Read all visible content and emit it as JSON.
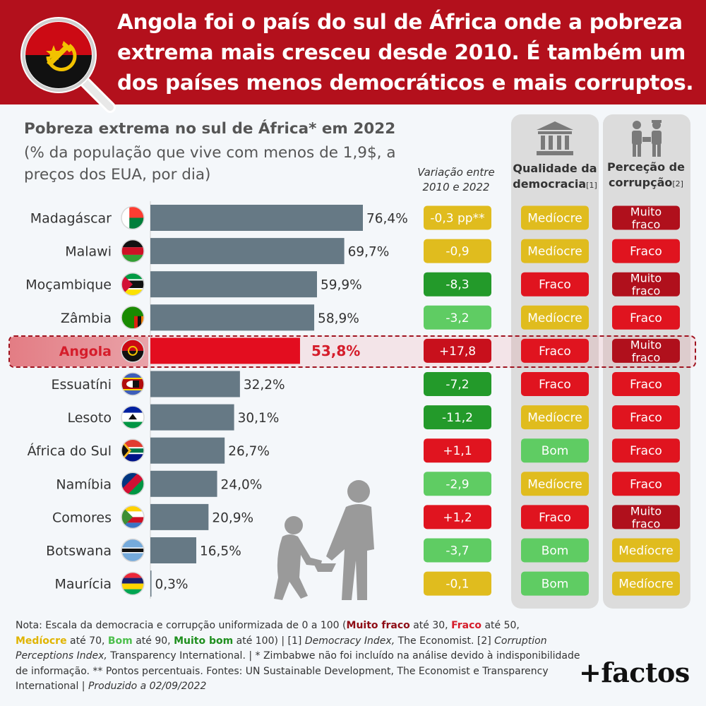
{
  "header": {
    "title": "Angola foi o país do sul de África onde a pobreza extrema mais cresceu desde 2010. É também um dos países menos democráticos e mais corruptos."
  },
  "colors": {
    "header_bg": "#b3101c",
    "bar": "#667985",
    "bar_highlight": "#e30d1f",
    "muito_fraco": "#b0101c",
    "fraco": "#e0141f",
    "mediocre": "#e0bc1e",
    "bom": "#5fcc63",
    "var_dark_green": "#239a2a",
    "var_light_green": "#5fcc63",
    "var_yellow": "#e0bc1e",
    "var_red": "#e0141f",
    "var_dark_red": "#c8101c"
  },
  "column_headers": {
    "variation_line1": "Variação entre",
    "variation_line2": "2010 e 2022",
    "democracy_line1": "Qualidade da",
    "democracy_line2": "democracia",
    "democracy_ref": "[1]",
    "corruption_line1": "Perceção de",
    "corruption_line2": "corrupção",
    "corruption_ref": "[2]"
  },
  "chart_data": {
    "type": "bar",
    "orientation": "horizontal",
    "title": "Pobreza extrema no sul de África* em 2022",
    "subtitle": "(% da população que vive com menos de 1,9$, a preços dos EUA, por dia)",
    "highlight": "Angola",
    "categories": [
      "Madagáscar",
      "Malawi",
      "Moçambique",
      "Zâmbia",
      "Angola",
      "Essuatíni",
      "Lesoto",
      "África do Sul",
      "Namíbia",
      "Comores",
      "Botswana",
      "Maurícia"
    ],
    "values": [
      76.4,
      69.7,
      59.9,
      58.9,
      53.8,
      32.2,
      30.1,
      26.7,
      24.0,
      20.9,
      16.5,
      0.3
    ],
    "value_labels": [
      "76,4%",
      "69,7%",
      "59,9%",
      "58,9%",
      "53,8%",
      "32,2%",
      "30,1%",
      "26,7%",
      "24,0%",
      "20,9%",
      "16,5%",
      "0,3%"
    ],
    "xlim": [
      0,
      76.4
    ],
    "variation": [
      {
        "label": "-0,3 pp**",
        "value": -0.3,
        "color": "var_yellow"
      },
      {
        "label": "-0,9",
        "value": -0.9,
        "color": "var_yellow"
      },
      {
        "label": "-8,3",
        "value": -8.3,
        "color": "var_dark_green"
      },
      {
        "label": "-3,2",
        "value": -3.2,
        "color": "var_light_green"
      },
      {
        "label": "+17,8",
        "value": 17.8,
        "color": "var_dark_red"
      },
      {
        "label": "-7,2",
        "value": -7.2,
        "color": "var_dark_green"
      },
      {
        "label": "-11,2",
        "value": -11.2,
        "color": "var_dark_green"
      },
      {
        "label": "+1,1",
        "value": 1.1,
        "color": "var_red"
      },
      {
        "label": "-2,9",
        "value": -2.9,
        "color": "var_light_green"
      },
      {
        "label": "+1,2",
        "value": 1.2,
        "color": "var_red"
      },
      {
        "label": "-3,7",
        "value": -3.7,
        "color": "var_light_green"
      },
      {
        "label": "-0,1",
        "value": -0.1,
        "color": "var_yellow"
      }
    ],
    "democracy": [
      "Medíocre",
      "Medíocre",
      "Fraco",
      "Medíocre",
      "Fraco",
      "Fraco",
      "Medíocre",
      "Bom",
      "Medíocre",
      "Fraco",
      "Bom",
      "Bom"
    ],
    "corruption": [
      "Muito fraco",
      "Fraco",
      "Muito fraco",
      "Fraco",
      "Muito fraco",
      "Fraco",
      "Fraco",
      "Fraco",
      "Fraco",
      "Muito fraco",
      "Medíocre",
      "Medíocre"
    ]
  },
  "note": {
    "p1": "Nota: Escala da democracia e corrupção uniformizada de 0 a 100 (",
    "muito_fraco": "Muito fraco",
    "p2": " até 30, ",
    "fraco": "Fraco",
    "p3": " até 50,",
    "mediocre": "Medíocre",
    "p4": " até 70, ",
    "bom": "Bom",
    "p5": " até 90, ",
    "muito_bom": "Muito bom",
    "p6": " até 100) | [1] ",
    "democracy_index": "Democracy Index,",
    "p7": " The Economist. [2]",
    "cpi": "Corruption Perceptions Index,",
    "p8": " Transparency International. | * Zimbabwe não foi incluído na análise devido à indisponibilidade de informação. ** Pontos percentuais. Fontes: UN Sustainable Development, The Economist e Transparency International | ",
    "produced": "Produzido a 02/09/2022"
  },
  "logo": "+factos",
  "icons": [
    "angola-flag-magnifier-icon",
    "columns-building-icon",
    "people-bribe-icon",
    "child-and-adult-silhouette"
  ]
}
